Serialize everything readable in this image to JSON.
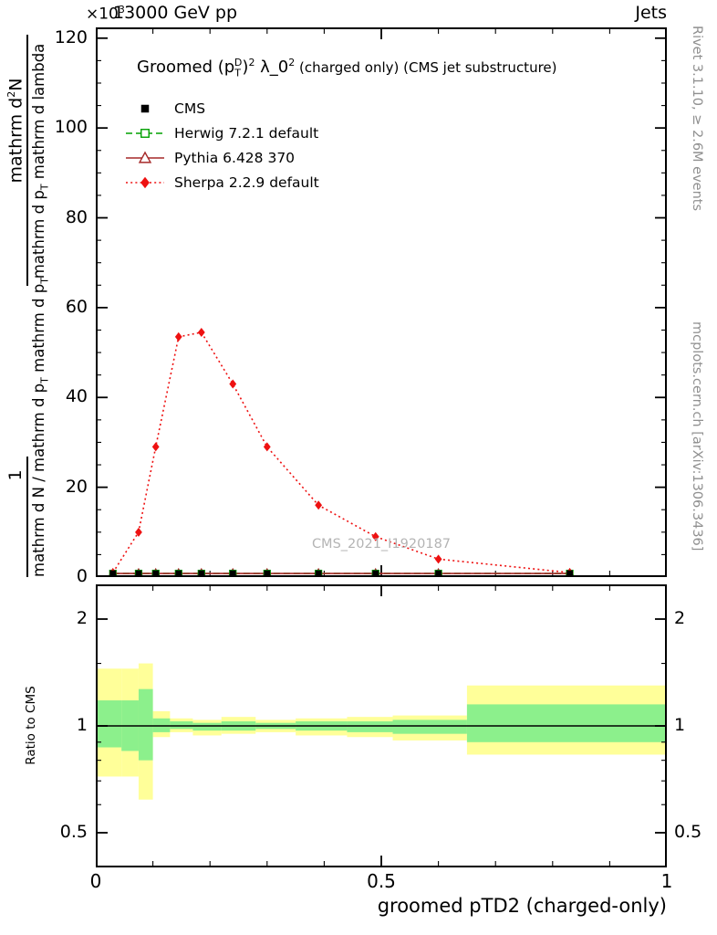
{
  "header": {
    "scale_label": "×10^3",
    "energy_title": "13000 GeV pp",
    "right_label": "Jets"
  },
  "plot_title": {
    "pre": "Groomed ",
    "p_open": "(p",
    "p_sub": "T",
    "p_sup": "D",
    "p_close": ")",
    "p_sq": "2",
    "lambda": " λ_0",
    "lambda_sq": "2",
    "suffix": "  (charged only) (CMS jet substructure)"
  },
  "side_labels": {
    "rivet": "Rivet 3.1.10, ≥ 2.6M events",
    "mcplots": "mcplots.cern.ch [arXiv:1306.3436]"
  },
  "watermark": "CMS_2021_I1920187",
  "ylabel": {
    "one": "1",
    "numerator": "mathrm d^2N",
    "denominator_top": "mathrm d p_T mathrm d lambda",
    "denominator_bottom": "mathrm d N / mathrm d p_T mathrm d p_T"
  },
  "ratio_label": "Ratio to CMS",
  "legend": [
    {
      "label": "CMS",
      "color": "#000000",
      "marker": "filled-square",
      "line": "none"
    },
    {
      "label": "Herwig 7.2.1 default",
      "color": "#00a000",
      "marker": "open-square",
      "line": "dashed"
    },
    {
      "label": "Pythia 6.428 370",
      "color": "#a62929",
      "marker": "open-triangle",
      "line": "solid"
    },
    {
      "label": "Sherpa 2.2.9 default",
      "color": "#ee1111",
      "marker": "filled-diamond",
      "line": "dotted"
    }
  ],
  "chart_data": {
    "type": "line",
    "title": "Groomed (p_T^D)^2 λ_0^2 (charged only) (CMS jet substructure)",
    "xlabel": "groomed pTD2 (charged-only)",
    "ylabel": "1/(dN/dp_T) d^2N/(dp_T dλ)",
    "y_scale": "×10^3",
    "xlim": [
      0,
      1
    ],
    "ylim": [
      0,
      122.4
    ],
    "x_major_ticks": [
      0,
      0.5,
      1
    ],
    "x_minor_step": 0.1,
    "y_major_ticks": [
      0,
      20,
      40,
      60,
      80,
      100,
      120
    ],
    "y_minor_step": 5,
    "legend_position": "top-left",
    "series": [
      {
        "name": "CMS",
        "color": "#000000",
        "marker": "filled-square",
        "line": "none",
        "x": [
          0.03,
          0.075,
          0.105,
          0.145,
          0.185,
          0.24,
          0.3,
          0.39,
          0.49,
          0.6,
          0.83
        ],
        "y": [
          0.8,
          0.8,
          0.8,
          0.8,
          0.8,
          0.8,
          0.8,
          0.8,
          0.8,
          0.8,
          0.8
        ]
      },
      {
        "name": "Herwig 7.2.1 default",
        "color": "#00a000",
        "marker": "open-square",
        "line": "dashed",
        "x": [
          0.03,
          0.075,
          0.105,
          0.145,
          0.185,
          0.24,
          0.3,
          0.39,
          0.49,
          0.6,
          0.83
        ],
        "y": [
          0.8,
          0.8,
          0.8,
          0.8,
          0.8,
          0.8,
          0.8,
          0.8,
          0.8,
          0.8,
          0.8
        ]
      },
      {
        "name": "Pythia 6.428 370",
        "color": "#a62929",
        "marker": "open-triangle",
        "line": "solid",
        "x": [
          0.03,
          0.075,
          0.105,
          0.145,
          0.185,
          0.24,
          0.3,
          0.39,
          0.49,
          0.6,
          0.83
        ],
        "y": [
          0.8,
          0.8,
          0.8,
          0.8,
          0.8,
          0.8,
          0.8,
          0.8,
          0.8,
          0.8,
          0.8
        ]
      },
      {
        "name": "Sherpa 2.2.9 default",
        "color": "#ee1111",
        "marker": "filled-diamond",
        "line": "dotted",
        "x": [
          0.03,
          0.075,
          0.105,
          0.145,
          0.185,
          0.24,
          0.3,
          0.39,
          0.49,
          0.6,
          0.83
        ],
        "y": [
          1.0,
          10,
          29,
          53.5,
          54.5,
          43,
          29,
          16,
          9,
          4,
          1.0
        ]
      }
    ],
    "ratio_panel": {
      "ylabel": "Ratio to CMS",
      "scale": "log",
      "ylim": [
        0.4,
        2.5
      ],
      "y_major_ticks": [
        0.5,
        1,
        2
      ],
      "y_minor_ticks": [
        0.6,
        0.7,
        0.8,
        0.9,
        1.5
      ],
      "reference_line": 1,
      "bands": {
        "x_edges": [
          0,
          0.045,
          0.075,
          0.1,
          0.13,
          0.17,
          0.22,
          0.28,
          0.35,
          0.44,
          0.52,
          0.65,
          1.0
        ],
        "yellow_lo": [
          0.72,
          0.72,
          0.62,
          0.93,
          0.96,
          0.94,
          0.95,
          0.96,
          0.94,
          0.93,
          0.91,
          0.83
        ],
        "yellow_hi": [
          1.45,
          1.45,
          1.5,
          1.1,
          1.05,
          1.04,
          1.06,
          1.04,
          1.05,
          1.06,
          1.07,
          1.3
        ],
        "green_lo": [
          0.87,
          0.85,
          0.8,
          0.96,
          0.98,
          0.97,
          0.97,
          0.98,
          0.97,
          0.96,
          0.95,
          0.9
        ],
        "green_hi": [
          1.18,
          1.18,
          1.27,
          1.05,
          1.03,
          1.02,
          1.03,
          1.02,
          1.03,
          1.03,
          1.04,
          1.15
        ]
      },
      "band_colors": {
        "yellow": "#ffff99",
        "green": "#8cf08c"
      }
    }
  }
}
